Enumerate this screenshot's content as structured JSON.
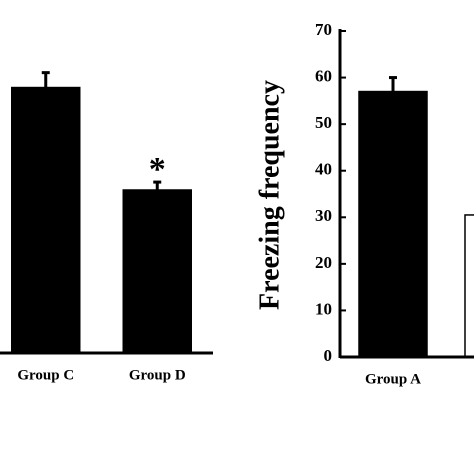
{
  "chart_data": [
    {
      "type": "bar",
      "categories": [
        "Group C",
        "Group D"
      ],
      "values": [
        57,
        35
      ],
      "errors": [
        3.2,
        1.7
      ],
      "colors": [
        "#000000",
        "#000000"
      ],
      "ylim": [
        0,
        70
      ],
      "annotations": [
        {
          "text": "*",
          "category": 1
        }
      ]
    },
    {
      "type": "bar",
      "y_label": "Freezing frequency",
      "categories": [
        "Group A",
        null
      ],
      "values": [
        57,
        30.5
      ],
      "errors": [
        3,
        null
      ],
      "colors": [
        "#000000",
        "#ffffff"
      ],
      "ylim": [
        0,
        70
      ],
      "yticks": [
        0,
        10,
        20,
        30,
        40,
        50,
        60,
        70
      ]
    }
  ]
}
